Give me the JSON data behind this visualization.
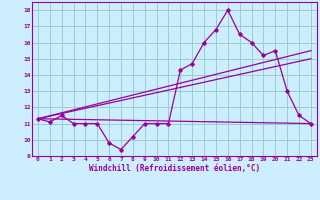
{
  "xlabel": "Windchill (Refroidissement éolien,°C)",
  "background_color": "#cceeff",
  "grid_color": "#99cccc",
  "line_color": "#990099",
  "xlim": [
    -0.5,
    23.5
  ],
  "ylim": [
    9,
    18.5
  ],
  "yticks": [
    9,
    10,
    11,
    12,
    13,
    14,
    15,
    16,
    17,
    18
  ],
  "xticks": [
    0,
    1,
    2,
    3,
    4,
    5,
    6,
    7,
    8,
    9,
    10,
    11,
    12,
    13,
    14,
    15,
    16,
    17,
    18,
    19,
    20,
    21,
    22,
    23
  ],
  "series1_x": [
    0,
    1,
    2,
    3,
    4,
    5,
    6,
    7,
    8,
    9,
    10,
    11,
    12,
    13,
    14,
    15,
    16,
    17,
    18,
    19,
    20,
    21,
    22,
    23
  ],
  "series1_y": [
    11.3,
    11.1,
    11.5,
    11.0,
    11.0,
    11.0,
    9.8,
    9.4,
    10.2,
    11.0,
    11.0,
    11.0,
    14.3,
    14.7,
    16.0,
    16.8,
    18.0,
    16.5,
    16.0,
    15.2,
    15.5,
    13.0,
    11.5,
    11.0
  ],
  "series2_x": [
    0,
    23
  ],
  "series2_y": [
    11.3,
    11.0
  ],
  "trend1_x": [
    0,
    23
  ],
  "trend1_y": [
    11.3,
    15.5
  ],
  "trend2_x": [
    0,
    23
  ],
  "trend2_y": [
    11.3,
    15.0
  ]
}
